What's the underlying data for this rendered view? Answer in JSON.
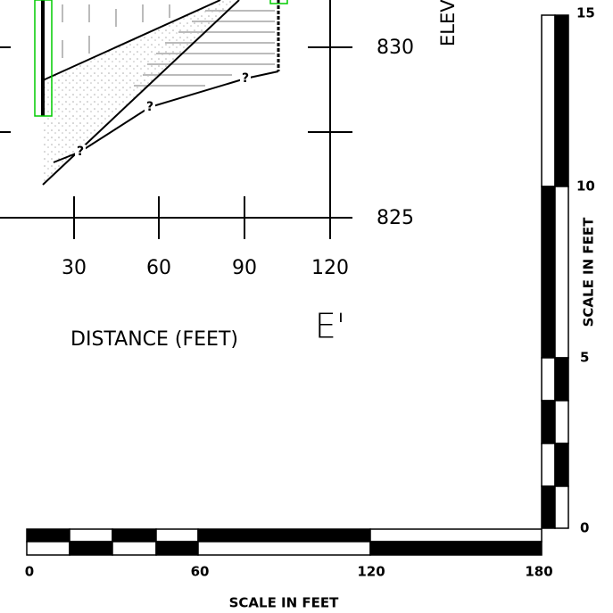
{
  "section": {
    "elevation_label": "ELEV",
    "elevations": [
      "830",
      "825"
    ],
    "distances": [
      "30",
      "60",
      "90",
      "120"
    ],
    "distance_label": "DISTANCE (FEET)",
    "section_end": "E'",
    "queries": [
      "?",
      "?",
      "?"
    ]
  },
  "horizontal_scale": {
    "labels": [
      "0",
      "60",
      "120",
      "180"
    ],
    "title": "SCALE IN FEET"
  },
  "vertical_scale": {
    "labels": [
      "15",
      "10",
      "5",
      "0"
    ],
    "title": "SCALE IN FEET"
  }
}
